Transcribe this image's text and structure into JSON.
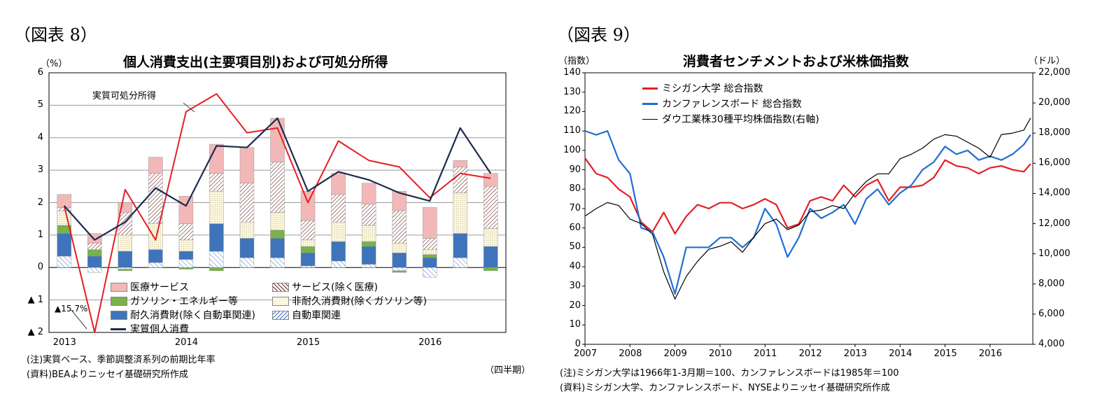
{
  "left": {
    "fig_label": "（図表 8）",
    "title": "個人消費支出(主要項目別)および可処分所得",
    "unit": "（%）",
    "note1": "(注)実質ベース、季節調整済系列の前期比年率",
    "note2": "(資料)BEAよりニッセイ基礎研究所作成",
    "xunit": "（四半期）",
    "callout": "実質可処分所得",
    "offscale_label": "▲15.7%",
    "colors": {
      "medical": "#f2b8b8",
      "services": "#ffffff",
      "gasoline": "#77b24a",
      "nondurable": "#fbf6dc",
      "durable": "#3f74bb",
      "auto": "#ffffff",
      "real_pce": "#1e2b4f",
      "disposable": "#e41f26"
    },
    "chart_data": {
      "type": "bar",
      "stacked": true,
      "categories": [
        "2013Q1",
        "2013Q2",
        "2013Q3",
        "2013Q4",
        "2014Q1",
        "2014Q2",
        "2014Q3",
        "2014Q4",
        "2015Q1",
        "2015Q2",
        "2015Q3",
        "2015Q4",
        "2016Q1",
        "2016Q2",
        "2016Q3"
      ],
      "year_labels": [
        "2013",
        "2014",
        "2015",
        "2016"
      ],
      "ylim": [
        -2,
        6
      ],
      "yticks": [
        "▲ 2",
        "▲ 1",
        "0",
        "1",
        "2",
        "3",
        "4",
        "5",
        "6"
      ],
      "series": [
        {
          "name": "自動車関連",
          "values": [
            0.35,
            -0.15,
            -0.05,
            0.15,
            0.25,
            0.5,
            0.3,
            0.3,
            0.05,
            0.2,
            0.1,
            -0.1,
            -0.3,
            0.3,
            0.0
          ]
        },
        {
          "name": "耐久消費財(除く自動車関連)",
          "values": [
            0.7,
            0.35,
            0.5,
            0.4,
            0.25,
            0.85,
            0.6,
            0.6,
            0.4,
            0.6,
            0.55,
            0.45,
            0.3,
            0.75,
            0.65
          ]
        },
        {
          "name": "ガソリン・エネルギー等",
          "values": [
            0.25,
            0.2,
            -0.05,
            0.0,
            -0.05,
            -0.1,
            0.0,
            0.25,
            0.2,
            0.0,
            0.15,
            -0.05,
            0.1,
            0.0,
            -0.1
          ]
        },
        {
          "name": "非耐久消費財(除くガソリン等)",
          "values": [
            0.45,
            0.0,
            0.5,
            0.8,
            0.35,
            1.0,
            0.5,
            0.55,
            0.2,
            0.6,
            0.5,
            0.3,
            0.15,
            1.25,
            0.55
          ]
        },
        {
          "name": "サービス(除く医療)",
          "values": [
            0.1,
            0.2,
            0.7,
            1.55,
            0.5,
            0.55,
            1.2,
            1.55,
            0.6,
            0.85,
            0.65,
            1.0,
            0.35,
            0.8,
            1.3
          ]
        },
        {
          "name": "医療サービス",
          "values": [
            0.4,
            0.3,
            0.3,
            0.5,
            0.85,
            0.9,
            1.1,
            1.35,
            0.9,
            0.65,
            0.65,
            0.6,
            0.95,
            0.2,
            0.4
          ]
        }
      ],
      "lines": [
        {
          "name": "実質個人消費",
          "values": [
            1.9,
            0.85,
            1.4,
            2.45,
            1.9,
            3.75,
            3.7,
            4.6,
            2.35,
            2.95,
            2.7,
            2.3,
            2.05,
            4.3,
            2.9
          ]
        },
        {
          "name": "実質可処分所得",
          "values": [
            1.9,
            -15.7,
            2.4,
            0.85,
            4.8,
            5.35,
            4.15,
            4.3,
            2.0,
            3.9,
            3.3,
            3.1,
            2.15,
            2.9,
            2.75
          ]
        }
      ],
      "legend": [
        {
          "label": "医療サービス",
          "key": "medical"
        },
        {
          "label": "サービス(除く医療)",
          "key": "services"
        },
        {
          "label": "ガソリン・エネルギー等",
          "key": "gasoline"
        },
        {
          "label": "非耐久消費財(除くガソリン等)",
          "key": "nondurable"
        },
        {
          "label": "耐久消費財(除く自動車関連)",
          "key": "durable"
        },
        {
          "label": "自動車関連",
          "key": "auto"
        },
        {
          "label": "実質個人消費",
          "key": "real_pce"
        }
      ]
    }
  },
  "right": {
    "fig_label": "（図表 9）",
    "title": "消費者センチメントおよび米株価指数",
    "unit_left": "（指数）",
    "unit_right": "（ドル）",
    "note1": "(注)ミシガン大学は1966年1-3月期＝100、カンファレンスボードは1985年＝100",
    "note2": "(資料)ミシガン大学、カンファレンスボード、NYSEよりニッセイ基礎研究所作成",
    "colors": {
      "michigan": "#e41f26",
      "conference": "#1f6fd1",
      "dow": "#000000"
    },
    "chart_data": {
      "type": "line",
      "x_labels": [
        "2007",
        "2008",
        "2009",
        "2010",
        "2011",
        "2012",
        "2013",
        "2014",
        "2015",
        "2016"
      ],
      "ylim": [
        0,
        140
      ],
      "y2lim": [
        4000,
        22000
      ],
      "yticks": [
        "0",
        "10",
        "20",
        "30",
        "40",
        "50",
        "60",
        "70",
        "80",
        "90",
        "100",
        "110",
        "120",
        "130",
        "140"
      ],
      "y2ticks": [
        "4,000",
        "6,000",
        "8,000",
        "10,000",
        "12,000",
        "14,000",
        "16,000",
        "18,000",
        "20,000",
        "22,000"
      ],
      "series": [
        {
          "name": "ミシガン大学 総合指数",
          "axis": "left",
          "x": [
            2007.0,
            2007.25,
            2007.5,
            2007.75,
            2008.0,
            2008.25,
            2008.5,
            2008.75,
            2009.0,
            2009.25,
            2009.5,
            2009.75,
            2010.0,
            2010.25,
            2010.5,
            2010.75,
            2011.0,
            2011.25,
            2011.5,
            2011.75,
            2012.0,
            2012.25,
            2012.5,
            2012.75,
            2013.0,
            2013.25,
            2013.5,
            2013.75,
            2014.0,
            2014.25,
            2014.5,
            2014.75,
            2015.0,
            2015.25,
            2015.5,
            2015.75,
            2016.0,
            2016.25,
            2016.5,
            2016.75,
            2016.9
          ],
          "values": [
            96,
            88,
            86,
            80,
            76,
            63,
            58,
            68,
            57,
            66,
            72,
            70,
            73,
            73,
            70,
            72,
            75,
            72,
            60,
            62,
            74,
            76,
            74,
            82,
            76,
            82,
            85,
            74,
            81,
            81,
            82,
            86,
            95,
            92,
            91,
            88,
            91,
            92,
            90,
            89,
            93
          ]
        },
        {
          "name": "カンファレンスボード 総合指数",
          "axis": "left",
          "x": [
            2007.0,
            2007.25,
            2007.5,
            2007.75,
            2008.0,
            2008.25,
            2008.5,
            2008.75,
            2009.0,
            2009.25,
            2009.5,
            2009.75,
            2010.0,
            2010.25,
            2010.5,
            2010.75,
            2011.0,
            2011.25,
            2011.5,
            2011.75,
            2012.0,
            2012.25,
            2012.5,
            2012.75,
            2013.0,
            2013.25,
            2013.5,
            2013.75,
            2014.0,
            2014.25,
            2014.5,
            2014.75,
            2015.0,
            2015.25,
            2015.5,
            2015.75,
            2016.0,
            2016.25,
            2016.5,
            2016.75,
            2016.9
          ],
          "values": [
            110,
            108,
            110,
            95,
            88,
            60,
            58,
            45,
            26,
            50,
            50,
            50,
            55,
            55,
            50,
            55,
            70,
            62,
            45,
            55,
            70,
            65,
            68,
            72,
            62,
            75,
            80,
            72,
            78,
            82,
            90,
            94,
            102,
            98,
            100,
            95,
            97,
            95,
            98,
            103,
            108
          ]
        },
        {
          "name": "ダウ工業株30種平均株価指数(右軸)",
          "axis": "right",
          "x": [
            2007.0,
            2007.25,
            2007.5,
            2007.75,
            2008.0,
            2008.25,
            2008.5,
            2008.75,
            2009.0,
            2009.25,
            2009.5,
            2009.75,
            2010.0,
            2010.25,
            2010.5,
            2010.75,
            2011.0,
            2011.25,
            2011.5,
            2011.75,
            2012.0,
            2012.25,
            2012.5,
            2012.75,
            2013.0,
            2013.25,
            2013.5,
            2013.75,
            2014.0,
            2014.25,
            2014.5,
            2014.75,
            2015.0,
            2015.25,
            2015.5,
            2015.75,
            2016.0,
            2016.25,
            2016.5,
            2016.75,
            2016.9
          ],
          "values": [
            12500,
            13000,
            13400,
            13200,
            12300,
            12000,
            11300,
            8800,
            7000,
            8500,
            9500,
            10300,
            10500,
            10800,
            10100,
            11100,
            12000,
            12300,
            11600,
            11900,
            12800,
            12900,
            13200,
            13000,
            14000,
            14800,
            15300,
            15300,
            16300,
            16600,
            17000,
            17600,
            17900,
            17800,
            17400,
            17000,
            16400,
            17900,
            18000,
            18200,
            19000
          ]
        }
      ]
    }
  }
}
